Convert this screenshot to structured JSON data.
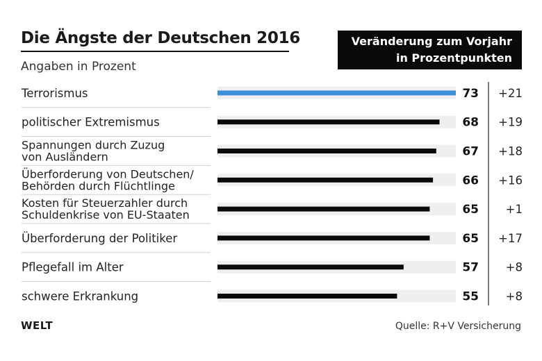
{
  "header": {
    "title": "Die Ängste der Deutschen 2016",
    "subtitle": "Angaben in Prozent",
    "change_header_line1": "Veränderung zum Vorjahr",
    "change_header_line2": "in Prozentpunkten"
  },
  "footer": {
    "logo": "WELT",
    "source": "Quelle: R+V Versicherung"
  },
  "colors": {
    "highlight_bar": "#3d8fd6",
    "default_bar": "#0a0a0a",
    "track": "#efefef"
  },
  "chart_data": {
    "type": "bar",
    "orientation": "horizontal",
    "title": "Die Ängste der Deutschen 2016",
    "subtitle": "Angaben in Prozent",
    "xlim": [
      0,
      73
    ],
    "categories": [
      [
        "Terrorismus"
      ],
      [
        "politischer Extremismus"
      ],
      [
        "Spannungen durch Zuzug",
        "von Ausländern"
      ],
      [
        "Überforderung von Deutschen/",
        "Behörden durch Flüchtlinge"
      ],
      [
        "Kosten für Steuerzahler durch",
        "Schuldenkrise von EU-Staaten"
      ],
      [
        "Überforderung der Politiker"
      ],
      [
        "Pflegefall im Alter"
      ],
      [
        "schwere Erkrankung"
      ]
    ],
    "series": [
      {
        "values": [
          73,
          68,
          67,
          66,
          65,
          65,
          57,
          55
        ]
      }
    ],
    "value_labels": [
      "73",
      "68",
      "67",
      "66",
      "65",
      "65",
      "57",
      "55"
    ],
    "change_labels": [
      "+21",
      "+19",
      "+18",
      "+16",
      "+1",
      "+17",
      "+8",
      "+8"
    ],
    "highlight_index": 0
  }
}
